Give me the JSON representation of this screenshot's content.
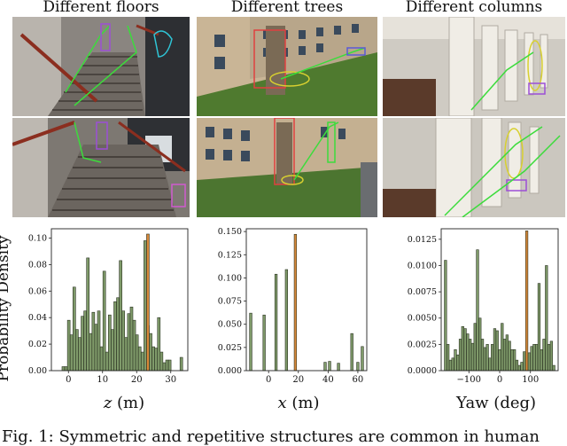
{
  "panels": [
    {
      "title": "Different floors"
    },
    {
      "title": "Different trees"
    },
    {
      "title": "Different columns"
    }
  ],
  "ylabel": "Probability Density",
  "caption": "Fig. 1: Symmetric and repetitive structures are common in human",
  "colors": {
    "bar": "#7f9a6a",
    "bar_edge": "#2b3322",
    "highlight": "#d9893a"
  },
  "chart_data": [
    {
      "type": "bar",
      "xlabel_var": "z",
      "xlabel_unit": " (m)",
      "xlim": [
        -5,
        35
      ],
      "ylim": [
        0,
        0.107
      ],
      "xticks": [
        0,
        10,
        20,
        30
      ],
      "xtick_labels": [
        "0",
        "10",
        "20",
        "30"
      ],
      "yticks": [
        0.0,
        0.02,
        0.04,
        0.06,
        0.08,
        0.1
      ],
      "ytick_labels": [
        "0.00",
        "0.02",
        "0.04",
        "0.06",
        "0.08",
        "0.10"
      ],
      "bar_width": 0.78,
      "x": [
        -1.5,
        -0.7,
        0.1,
        0.9,
        1.7,
        2.5,
        3.3,
        4.1,
        4.9,
        5.7,
        6.5,
        7.3,
        8.1,
        8.9,
        9.7,
        10.5,
        11.3,
        12.1,
        12.9,
        13.7,
        14.5,
        15.3,
        16.1,
        16.9,
        17.7,
        18.5,
        19.3,
        20.1,
        20.9,
        21.7,
        22.5,
        23.3,
        24.1,
        24.9,
        25.7,
        26.5,
        27.3,
        28.1,
        28.9,
        29.7,
        33.1
      ],
      "values": [
        0.003,
        0.003,
        0.038,
        0.027,
        0.063,
        0.031,
        0.025,
        0.041,
        0.045,
        0.085,
        0.028,
        0.044,
        0.035,
        0.045,
        0.018,
        0.075,
        0.014,
        0.042,
        0.031,
        0.052,
        0.055,
        0.083,
        0.045,
        0.025,
        0.043,
        0.048,
        0.038,
        0.027,
        0.018,
        0.014,
        0.098,
        0.034,
        0.028,
        0.018,
        0.017,
        0.04,
        0.014,
        0.006,
        0.008,
        0.008,
        0.01
      ],
      "highlight_x": [
        23.3
      ],
      "highlight_values": [
        0.103
      ]
    },
    {
      "type": "bar",
      "xlabel_var": "x",
      "xlabel_unit": " (m)",
      "xlim": [
        -15,
        66
      ],
      "ylim": [
        0,
        0.153
      ],
      "xticks": [
        0,
        20,
        40,
        60
      ],
      "xtick_labels": [
        "0",
        "20",
        "40",
        "60"
      ],
      "yticks": [
        0.0,
        0.025,
        0.05,
        0.075,
        0.1,
        0.125,
        0.15
      ],
      "ytick_labels": [
        "0.000",
        "0.025",
        "0.050",
        "0.075",
        "0.100",
        "0.125",
        "0.150"
      ],
      "bar_width": 1.6,
      "x": [
        -12,
        -3,
        5,
        12,
        38,
        41,
        47,
        56,
        60,
        63
      ],
      "values": [
        0.062,
        0.06,
        0.104,
        0.109,
        0.009,
        0.01,
        0.008,
        0.04,
        0.009,
        0.026
      ],
      "highlight_x": [
        18
      ],
      "highlight_values": [
        0.147
      ]
    },
    {
      "type": "bar",
      "xlabel_var": "",
      "xlabel_unit": "Yaw (deg)",
      "xlim": [
        -190,
        190
      ],
      "ylim": [
        0,
        0.0135
      ],
      "xticks": [
        -100,
        0,
        100
      ],
      "xtick_labels": [
        "−100",
        "0",
        "100"
      ],
      "yticks": [
        0.0,
        0.0025,
        0.005,
        0.0075,
        0.01,
        0.0125
      ],
      "ytick_labels": [
        "0.0000",
        "0.0025",
        "0.0050",
        "0.0075",
        "0.0100",
        "0.0125"
      ],
      "bar_width": 7.6,
      "x": [
        -176,
        -168,
        -160,
        -152,
        -144,
        -136,
        -128,
        -120,
        -112,
        -104,
        -96,
        -88,
        -80,
        -72,
        -64,
        -56,
        -48,
        -40,
        -32,
        -24,
        -16,
        -8,
        0,
        8,
        16,
        24,
        32,
        40,
        48,
        56,
        64,
        72,
        80,
        96,
        104,
        112,
        120,
        128,
        136,
        144,
        152,
        160,
        168,
        176
      ],
      "values": [
        0.0105,
        0.0025,
        0.001,
        0.0012,
        0.002,
        0.0015,
        0.003,
        0.0042,
        0.004,
        0.0035,
        0.003,
        0.0026,
        0.0045,
        0.0115,
        0.005,
        0.003,
        0.0022,
        0.0025,
        0.0012,
        0.0025,
        0.004,
        0.0038,
        0.002,
        0.0045,
        0.003,
        0.0034,
        0.0028,
        0.002,
        0.002,
        0.001,
        0.0005,
        0.0008,
        0.0018,
        0.0017,
        0.0023,
        0.0025,
        0.0025,
        0.0083,
        0.002,
        0.003,
        0.01,
        0.0025,
        0.0028,
        0.0005
      ],
      "highlight_x": [
        88
      ],
      "highlight_values": [
        0.0133
      ]
    }
  ]
}
